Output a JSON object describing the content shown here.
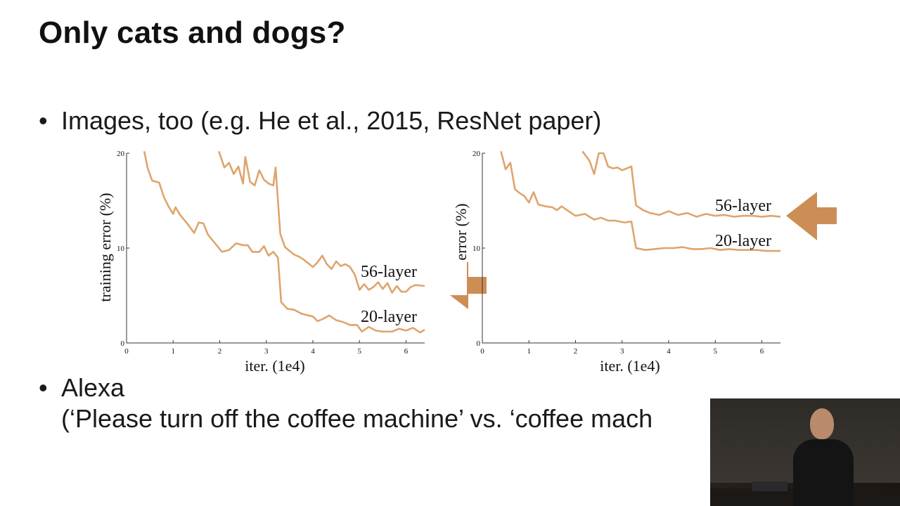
{
  "slide": {
    "title": "Only cats and dogs?",
    "bullet_char": "•",
    "bullet_1": "Images, too (e.g. He et al., 2015, ResNet paper)",
    "bullet_2_line_1": "Alexa",
    "bullet_2_line_2": "(‘Please turn off the coffee machine’ vs. ‘coffee mach"
  },
  "colors": {
    "series": "#dfa46c",
    "axis": "#333333",
    "arrow": "#cd8e55"
  },
  "chart_data": [
    {
      "type": "line",
      "xlabel": "iter. (1e4)",
      "ylabel": "training error (%)",
      "xlim": [
        0,
        6.4
      ],
      "ylim": [
        0,
        20
      ],
      "xticks": [
        0,
        1,
        2,
        3,
        4,
        5,
        6
      ],
      "yticks": [
        0,
        10,
        20
      ],
      "series": [
        {
          "name": "56-layer",
          "points": [
            [
              1.98,
              20.2
            ],
            [
              2.1,
              18.5
            ],
            [
              2.2,
              19.0
            ],
            [
              2.3,
              17.8
            ],
            [
              2.4,
              18.6
            ],
            [
              2.5,
              16.8
            ],
            [
              2.55,
              19.6
            ],
            [
              2.65,
              17.0
            ],
            [
              2.75,
              16.6
            ],
            [
              2.85,
              18.2
            ],
            [
              2.95,
              17.2
            ],
            [
              3.05,
              16.8
            ],
            [
              3.15,
              16.6
            ],
            [
              3.2,
              18.5
            ],
            [
              3.3,
              11.5
            ],
            [
              3.4,
              10.1
            ],
            [
              3.5,
              9.7
            ],
            [
              3.6,
              9.3
            ],
            [
              3.7,
              9.1
            ],
            [
              3.8,
              8.8
            ],
            [
              3.9,
              8.4
            ],
            [
              4.0,
              8.0
            ],
            [
              4.1,
              8.5
            ],
            [
              4.2,
              9.2
            ],
            [
              4.3,
              8.3
            ],
            [
              4.4,
              7.8
            ],
            [
              4.5,
              8.6
            ],
            [
              4.6,
              8.1
            ],
            [
              4.7,
              8.3
            ],
            [
              4.8,
              8.0
            ],
            [
              4.9,
              7.2
            ],
            [
              5.0,
              5.6
            ],
            [
              5.1,
              6.2
            ],
            [
              5.2,
              5.6
            ],
            [
              5.3,
              5.9
            ],
            [
              5.4,
              6.4
            ],
            [
              5.5,
              5.7
            ],
            [
              5.6,
              6.3
            ],
            [
              5.7,
              5.3
            ],
            [
              5.8,
              6.0
            ],
            [
              5.9,
              5.4
            ],
            [
              6.0,
              5.4
            ],
            [
              6.1,
              5.9
            ],
            [
              6.2,
              6.1
            ],
            [
              6.4,
              6.0
            ]
          ]
        },
        {
          "name": "20-layer",
          "points": [
            [
              0.38,
              20.2
            ],
            [
              0.45,
              18.5
            ],
            [
              0.55,
              17.1
            ],
            [
              0.7,
              16.9
            ],
            [
              0.8,
              15.4
            ],
            [
              0.9,
              14.4
            ],
            [
              1.0,
              13.6
            ],
            [
              1.05,
              14.3
            ],
            [
              1.15,
              13.5
            ],
            [
              1.3,
              12.6
            ],
            [
              1.45,
              11.6
            ],
            [
              1.55,
              12.7
            ],
            [
              1.65,
              12.6
            ],
            [
              1.75,
              11.4
            ],
            [
              1.9,
              10.5
            ],
            [
              2.05,
              9.6
            ],
            [
              2.2,
              9.8
            ],
            [
              2.35,
              10.5
            ],
            [
              2.5,
              10.3
            ],
            [
              2.6,
              10.3
            ],
            [
              2.7,
              9.6
            ],
            [
              2.85,
              9.6
            ],
            [
              2.95,
              10.2
            ],
            [
              3.05,
              9.2
            ],
            [
              3.15,
              9.6
            ],
            [
              3.25,
              9.0
            ],
            [
              3.32,
              4.3
            ],
            [
              3.45,
              3.6
            ],
            [
              3.6,
              3.5
            ],
            [
              3.75,
              3.1
            ],
            [
              3.9,
              2.9
            ],
            [
              4.0,
              2.8
            ],
            [
              4.1,
              2.3
            ],
            [
              4.2,
              2.5
            ],
            [
              4.35,
              2.9
            ],
            [
              4.5,
              2.4
            ],
            [
              4.65,
              2.2
            ],
            [
              4.8,
              1.9
            ],
            [
              4.95,
              1.9
            ],
            [
              5.05,
              1.2
            ],
            [
              5.2,
              1.7
            ],
            [
              5.35,
              1.3
            ],
            [
              5.5,
              1.2
            ],
            [
              5.7,
              1.2
            ],
            [
              5.85,
              1.5
            ],
            [
              6.0,
              1.3
            ],
            [
              6.15,
              1.6
            ],
            [
              6.3,
              1.1
            ],
            [
              6.4,
              1.4
            ]
          ]
        }
      ]
    },
    {
      "type": "line",
      "xlabel": "iter. (1e4)",
      "ylabel": "error (%)",
      "xlim": [
        0,
        6.4
      ],
      "ylim": [
        0,
        20
      ],
      "xticks": [
        0,
        1,
        2,
        3,
        4,
        5,
        6
      ],
      "yticks": [
        0,
        10,
        20
      ],
      "series": [
        {
          "name": "56-layer",
          "points": [
            [
              2.15,
              20.2
            ],
            [
              2.3,
              19.2
            ],
            [
              2.4,
              17.8
            ],
            [
              2.5,
              20.0
            ],
            [
              2.6,
              20.0
            ],
            [
              2.7,
              18.6
            ],
            [
              2.8,
              18.4
            ],
            [
              2.9,
              18.5
            ],
            [
              3.0,
              18.2
            ],
            [
              3.1,
              18.4
            ],
            [
              3.2,
              18.6
            ],
            [
              3.3,
              14.5
            ],
            [
              3.45,
              14.0
            ],
            [
              3.6,
              13.7
            ],
            [
              3.8,
              13.5
            ],
            [
              4.0,
              13.9
            ],
            [
              4.2,
              13.5
            ],
            [
              4.4,
              13.7
            ],
            [
              4.6,
              13.3
            ],
            [
              4.8,
              13.6
            ],
            [
              5.0,
              13.4
            ],
            [
              5.2,
              13.5
            ],
            [
              5.4,
              13.3
            ],
            [
              5.6,
              13.4
            ],
            [
              5.8,
              13.4
            ],
            [
              6.0,
              13.3
            ],
            [
              6.2,
              13.4
            ],
            [
              6.4,
              13.3
            ]
          ]
        },
        {
          "name": "20-layer",
          "points": [
            [
              0.4,
              20.2
            ],
            [
              0.5,
              18.3
            ],
            [
              0.6,
              19.0
            ],
            [
              0.7,
              16.2
            ],
            [
              0.8,
              15.8
            ],
            [
              0.9,
              15.5
            ],
            [
              1.0,
              14.8
            ],
            [
              1.1,
              15.9
            ],
            [
              1.2,
              14.6
            ],
            [
              1.35,
              14.4
            ],
            [
              1.5,
              14.3
            ],
            [
              1.6,
              14.0
            ],
            [
              1.7,
              14.4
            ],
            [
              1.85,
              13.9
            ],
            [
              2.0,
              13.4
            ],
            [
              2.2,
              13.6
            ],
            [
              2.4,
              13.0
            ],
            [
              2.55,
              13.2
            ],
            [
              2.7,
              12.9
            ],
            [
              2.85,
              12.9
            ],
            [
              3.05,
              12.7
            ],
            [
              3.2,
              12.8
            ],
            [
              3.3,
              10.0
            ],
            [
              3.5,
              9.8
            ],
            [
              3.7,
              9.9
            ],
            [
              3.9,
              10.0
            ],
            [
              4.1,
              10.0
            ],
            [
              4.3,
              10.1
            ],
            [
              4.5,
              9.9
            ],
            [
              4.7,
              9.9
            ],
            [
              4.9,
              10.0
            ],
            [
              5.1,
              9.8
            ],
            [
              5.3,
              9.9
            ],
            [
              5.5,
              9.8
            ],
            [
              5.7,
              9.8
            ],
            [
              5.9,
              9.8
            ],
            [
              6.1,
              9.7
            ],
            [
              6.4,
              9.7
            ]
          ]
        }
      ]
    }
  ]
}
